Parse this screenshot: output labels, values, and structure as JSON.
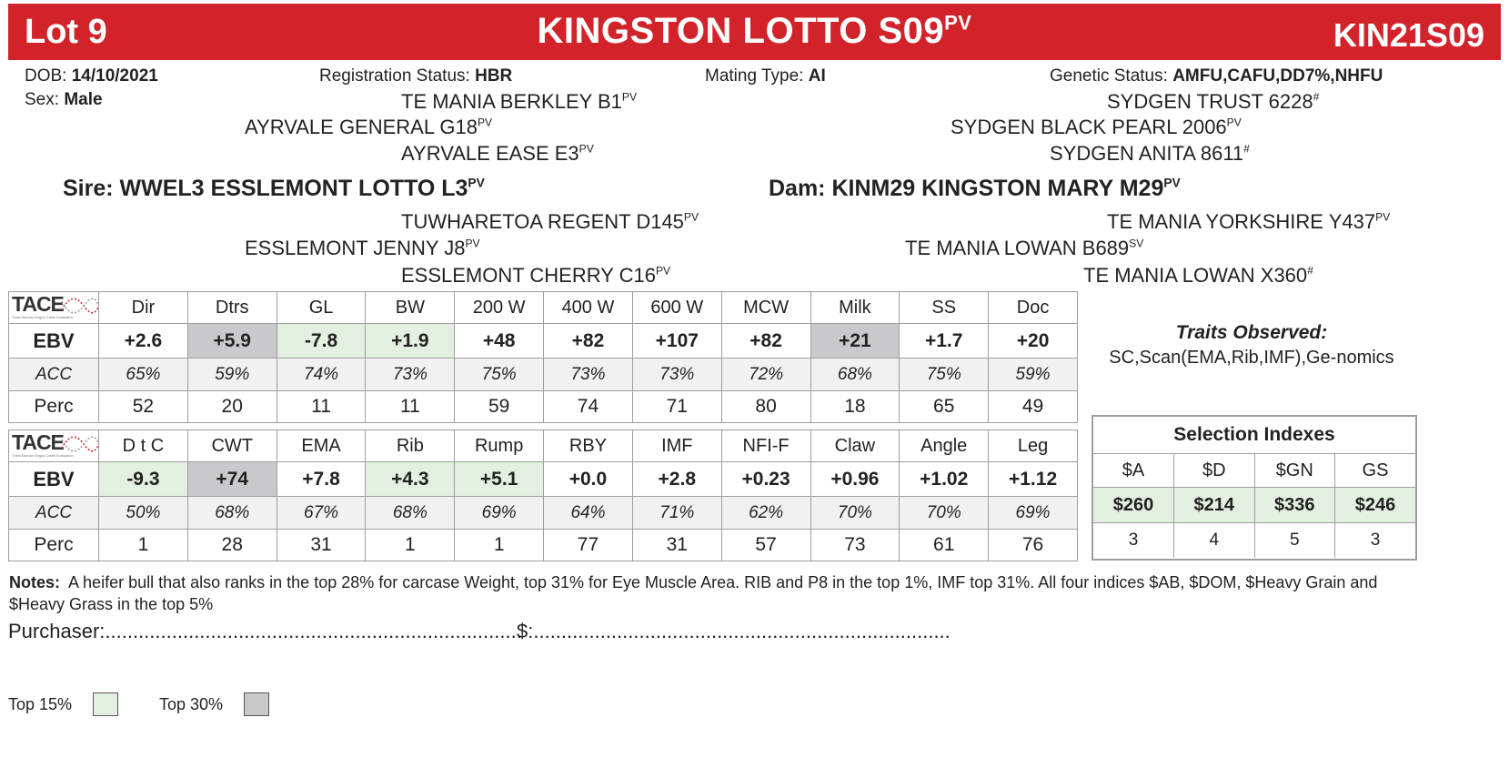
{
  "header": {
    "lot": "Lot 9",
    "animal_name": "KINGSTON LOTTO S09",
    "animal_name_sup": "PV",
    "ident": "KIN21S09"
  },
  "info": {
    "dob_label": "DOB:",
    "dob_value": "14/10/2021",
    "sex_label": "Sex:",
    "sex_value": "Male",
    "reg_label": "Registration Status:",
    "reg_value": "HBR",
    "mating_label": "Mating Type:",
    "mating_value": "AI",
    "genetic_label": "Genetic Status:",
    "genetic_value": "AMFU,CAFU,DD7%,NHFU"
  },
  "pedigree": {
    "sire_sire_sire": "TE MANIA BERKLEY B1",
    "sire_sire_sire_sup": "PV",
    "sire_sire": "AYRVALE GENERAL G18",
    "sire_sire_sup": "PV",
    "sire_sire_dam": "AYRVALE EASE E3",
    "sire_sire_dam_sup": "PV",
    "sire_label": "Sire:",
    "sire": "WWEL3 ESSLEMONT LOTTO L3",
    "sire_sup": "PV",
    "sire_dam_sire": "TUWHARETOA REGENT D145",
    "sire_dam_sire_sup": "PV",
    "sire_dam": "ESSLEMONT JENNY J8",
    "sire_dam_sup": "PV",
    "sire_dam_dam": "ESSLEMONT CHERRY C16",
    "sire_dam_dam_sup": "PV",
    "dam_sire_sire": "SYDGEN TRUST 6228",
    "dam_sire_sire_sup": "#",
    "dam_sire": "SYDGEN BLACK PEARL 2006",
    "dam_sire_sup": "PV",
    "dam_sire_dam": "SYDGEN ANITA 8611",
    "dam_sire_dam_sup": "#",
    "dam_label": "Dam:",
    "dam": "KINM29 KINGSTON MARY M29",
    "dam_sup": "PV",
    "dam_dam_sire": "TE MANIA YORKSHIRE Y437",
    "dam_dam_sire_sup": "PV",
    "dam_dam": "TE MANIA LOWAN B689",
    "dam_dam_sup": "SV",
    "dam_dam_dam": "TE MANIA LOWAN X360",
    "dam_dam_dam_sup": "#"
  },
  "logo": {
    "text": "TACE",
    "subtitle": "TransTasman Angus Cattle Evaluation"
  },
  "row_labels": {
    "ebv": "EBV",
    "acc": "ACC",
    "perc": "Perc"
  },
  "table1": {
    "traits": [
      "Dir",
      "Dtrs",
      "GL",
      "BW",
      "200 W",
      "400 W",
      "600 W",
      "MCW",
      "Milk",
      "SS",
      "Doc"
    ],
    "ebv": [
      "+2.6",
      "+5.9",
      "-7.8",
      "+1.9",
      "+48",
      "+82",
      "+107",
      "+82",
      "+21",
      "+1.7",
      "+20"
    ],
    "acc": [
      "65%",
      "59%",
      "74%",
      "73%",
      "75%",
      "73%",
      "73%",
      "72%",
      "68%",
      "75%",
      "59%"
    ],
    "perc": [
      "52",
      "20",
      "11",
      "11",
      "59",
      "74",
      "71",
      "80",
      "18",
      "65",
      "49"
    ]
  },
  "table2": {
    "traits": [
      "D t C",
      "CWT",
      "EMA",
      "Rib",
      "Rump",
      "RBY",
      "IMF",
      "NFI-F",
      "Claw",
      "Angle",
      "Leg"
    ],
    "ebv": [
      "-9.3",
      "+74",
      "+7.8",
      "+4.3",
      "+5.1",
      "+0.0",
      "+2.8",
      "+0.23",
      "+0.96",
      "+1.02",
      "+1.12"
    ],
    "acc": [
      "50%",
      "68%",
      "67%",
      "68%",
      "69%",
      "64%",
      "71%",
      "62%",
      "70%",
      "70%",
      "69%"
    ],
    "perc": [
      "1",
      "28",
      "31",
      "1",
      "1",
      "77",
      "31",
      "57",
      "73",
      "61",
      "76"
    ]
  },
  "traits_observed": {
    "title": "Traits Observed:",
    "value": "SC,Scan(EMA,Rib,IMF),Ge-nomics"
  },
  "selection": {
    "title": "Selection Indexes",
    "headers": [
      "$A",
      "$D",
      "$GN",
      "GS"
    ],
    "values": [
      "$260",
      "$214",
      "$336",
      "$246"
    ],
    "perc": [
      "3",
      "4",
      "5",
      "3"
    ]
  },
  "notes": {
    "label": "Notes:",
    "text": "A heifer bull that also ranks in the top 28% for carcase Weight, top 31% for Eye Muscle Area. RIB and P8 in the top 1%, IMF top 31%. All four indices $AB, $DOM, $Heavy Grain and $Heavy Grass in the top 5%"
  },
  "purchaser": {
    "label": "Purchaser:",
    "dots": "...........................................................................",
    "price_label": "$:",
    "price_dots": "..........................................................................."
  },
  "legend": {
    "top15": "Top 15%",
    "top30": "Top 30%",
    "top15_color": "#e3efe0",
    "top30_color": "#c9c9cb"
  },
  "colors": {
    "brand_red": "#d2232a"
  }
}
